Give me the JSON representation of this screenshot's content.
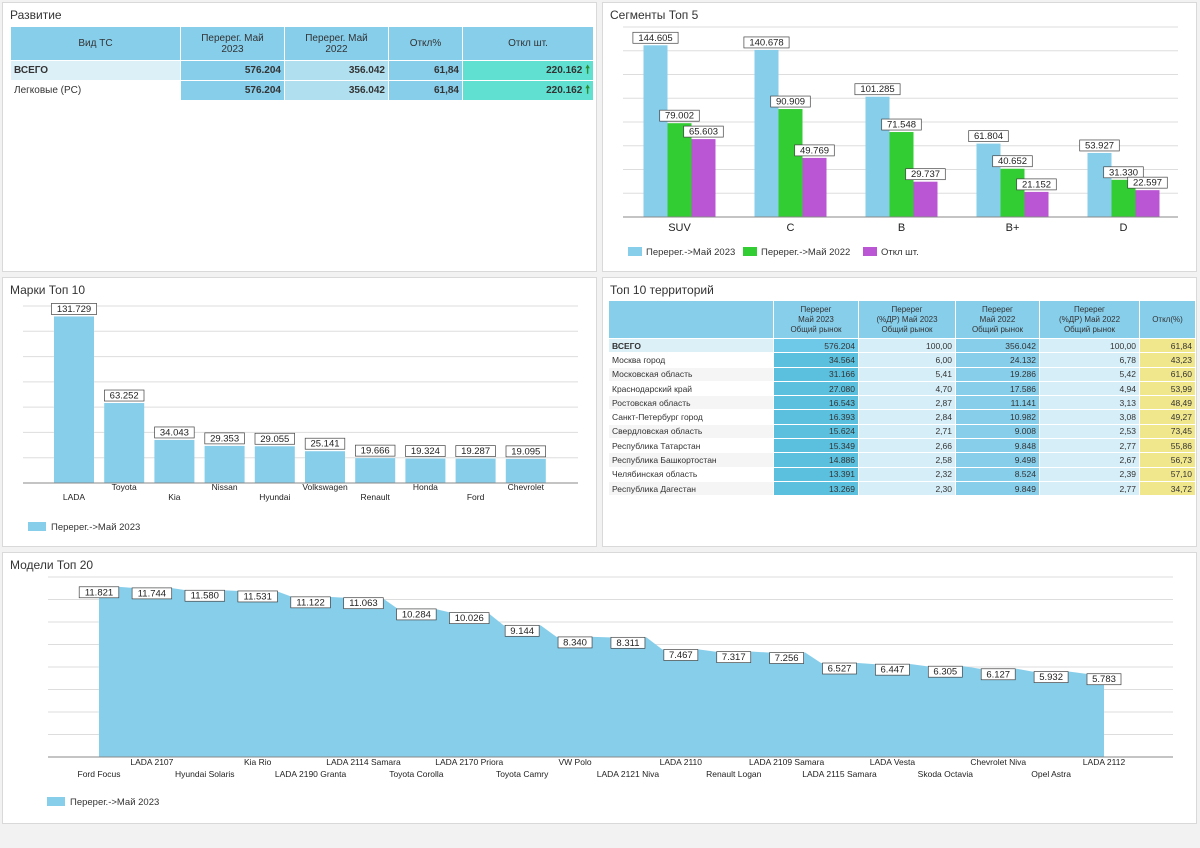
{
  "razvitie": {
    "title": "Развитие",
    "headers": [
      "Вид ТС",
      "Перерег. Май 2023",
      "Перерег. Май 2022",
      "Откл%",
      "Откл шт."
    ],
    "rows": [
      {
        "name": "ВСЕГО",
        "v2023": "576.204",
        "v2022": "356.042",
        "pct": "61,84",
        "diff": "220.162",
        "arrow": "🠕"
      },
      {
        "name": "Легковые (PC)",
        "v2023": "576.204",
        "v2022": "356.042",
        "pct": "61,84",
        "diff": "220.162",
        "arrow": "🠕"
      }
    ]
  },
  "segments": {
    "title": "Сегменты Топ 5",
    "legend": [
      "Перерег.->Май 2023",
      "Перерег.->Май 2022",
      "Откл шт."
    ],
    "colors": [
      "#87ceeb",
      "#32cd32",
      "#ba55d3"
    ],
    "chart_data": {
      "type": "bar",
      "categories": [
        "SUV",
        "C",
        "B",
        "B+",
        "D"
      ],
      "series": [
        {
          "name": "Перерег.->Май 2023",
          "values": [
            144605,
            140678,
            101285,
            61804,
            53927
          ],
          "labels": [
            "144.605",
            "140.678",
            "101.285",
            "61.804",
            "53.927"
          ]
        },
        {
          "name": "Перерег.->Май 2022",
          "values": [
            79002,
            90909,
            71548,
            40652,
            31330
          ],
          "labels": [
            "79.002",
            "90.909",
            "71.548",
            "40.652",
            "31.330"
          ]
        },
        {
          "name": "Откл шт.",
          "values": [
            65603,
            49769,
            29737,
            21152,
            22597
          ],
          "labels": [
            "65.603",
            "49.769",
            "29.737",
            "21.152",
            "22.597"
          ]
        }
      ]
    }
  },
  "brands": {
    "title": "Марки Топ 10",
    "legend": "Перерег.->Май 2023",
    "color": "#87ceeb",
    "chart_data": {
      "type": "bar",
      "categories": [
        "LADA",
        "Toyota",
        "Kia",
        "Nissan",
        "Hyundai",
        "Volkswagen",
        "Renault",
        "Honda",
        "Ford",
        "Chevrolet"
      ],
      "values": [
        131729,
        63252,
        34043,
        29353,
        29055,
        25141,
        19666,
        19324,
        19287,
        19095
      ],
      "labels": [
        "131.729",
        "63.252",
        "34.043",
        "29.353",
        "29.055",
        "25.141",
        "19.666",
        "19.324",
        "19.287",
        "19.095"
      ]
    }
  },
  "territories": {
    "title": "Топ 10 территорий",
    "headers": [
      [
        "",
        "",
        ""
      ],
      [
        "Перерег",
        "Май 2023",
        "Общий рынок"
      ],
      [
        "Перерег",
        "(%ДР) Май 2023",
        "Общий рынок"
      ],
      [
        "Перерег",
        "Май 2022",
        "Общий рынок"
      ],
      [
        "Перерег",
        "(%ДР) Май 2022",
        "Общий рынок"
      ],
      [
        "Откл(%)",
        "",
        ""
      ]
    ],
    "rows": [
      [
        "ВСЕГО",
        "576.204",
        "100,00",
        "356.042",
        "100,00",
        "61,84"
      ],
      [
        "Москва город",
        "34.564",
        "6,00",
        "24.132",
        "6,78",
        "43,23"
      ],
      [
        "Московская область",
        "31.166",
        "5,41",
        "19.286",
        "5,42",
        "61,60"
      ],
      [
        "Краснодарский край",
        "27.080",
        "4,70",
        "17.586",
        "4,94",
        "53,99"
      ],
      [
        "Ростовская область",
        "16.543",
        "2,87",
        "11.141",
        "3,13",
        "48,49"
      ],
      [
        "Санкт-Петербург город",
        "16.393",
        "2,84",
        "10.982",
        "3,08",
        "49,27"
      ],
      [
        "Свердловская область",
        "15.624",
        "2,71",
        "9.008",
        "2,53",
        "73,45"
      ],
      [
        "Республика Татарстан",
        "15.349",
        "2,66",
        "9.848",
        "2,77",
        "55,86"
      ],
      [
        "Республика Башкортостан",
        "14.886",
        "2,58",
        "9.498",
        "2,67",
        "56,73"
      ],
      [
        "Челябинская область",
        "13.391",
        "2,32",
        "8.524",
        "2,39",
        "57,10"
      ],
      [
        "Республика Дагестан",
        "13.269",
        "2,30",
        "9.849",
        "2,77",
        "34,72"
      ]
    ]
  },
  "models": {
    "title": "Модели Топ 20",
    "legend": "Перерег.->Май 2023",
    "color": "#87ceeb",
    "chart_data": {
      "type": "area",
      "categories": [
        "Ford Focus",
        "LADA 2107",
        "Hyundai Solaris",
        "Kia Rio",
        "LADA 2190 Granta",
        "LADA 2114 Samara",
        "Toyota Corolla",
        "LADA 2170 Priora",
        "Toyota Camry",
        "VW Polo",
        "LADA 2121 Niva",
        "LADA 2110",
        "Renault Logan",
        "LADA 2109 Samara",
        "LADA 2115 Samara",
        "LADA Vesta",
        "Skoda Octavia",
        "Chevrolet Niva",
        "Opel Astra",
        "LADA 2112"
      ],
      "values": [
        11821,
        11744,
        11580,
        11531,
        11122,
        11063,
        10284,
        10026,
        9144,
        8340,
        8311,
        7467,
        7317,
        7256,
        6527,
        6447,
        6305,
        6127,
        5932,
        5783
      ],
      "labels": [
        "11.821",
        "11.744",
        "11.580",
        "11.531",
        "11.122",
        "11.063",
        "10.284",
        "10.026",
        "9.144",
        "8.340",
        "8.311",
        "7.467",
        "7.317",
        "7.256",
        "6.527",
        "6.447",
        "6.305",
        "6.127",
        "5.932",
        "5.783"
      ]
    }
  }
}
